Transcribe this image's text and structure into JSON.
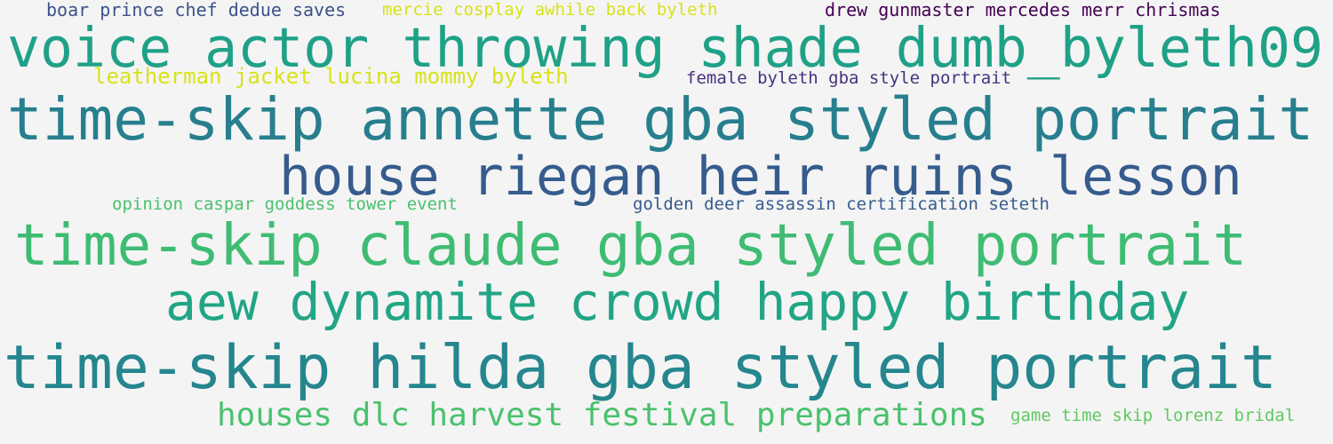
{
  "phrases": [
    {
      "text": "boar prince chef dedue saves",
      "color": "#3b528b"
    },
    {
      "text": "mercie cosplay awhile back byleth",
      "color": "#d8e219"
    },
    {
      "text": "drew gunmaster mercedes merr chrismas",
      "color": "#440154"
    },
    {
      "text": "voice actor throwing shade dumb_byleth09",
      "color": "#1fa187"
    },
    {
      "text": "leatherman jacket lucina mommy byleth",
      "color": "#d8e219"
    },
    {
      "text": "female byleth gba style portrait",
      "color": "#46327e"
    },
    {
      "text": "time-skip annette gba styled portrait",
      "color": "#277f8e"
    },
    {
      "text": "house riegan heir ruins lesson",
      "color": "#365c8d"
    },
    {
      "text": "opinion caspar goddess tower event",
      "color": "#4ac16d"
    },
    {
      "text": "golden deer assassin certification seteth",
      "color": "#365c8d"
    },
    {
      "text": "time-skip claude gba styled portrait",
      "color": "#3fbc73"
    },
    {
      "text": "aew dynamite crowd happy birthday",
      "color": "#21a585"
    },
    {
      "text": "time-skip hilda gba styled portrait",
      "color": "#25868e"
    },
    {
      "text": "houses dlc harvest festival preparations",
      "color": "#4ac16d"
    },
    {
      "text": "game time skip lorenz bridal",
      "color": "#5ec962"
    }
  ]
}
